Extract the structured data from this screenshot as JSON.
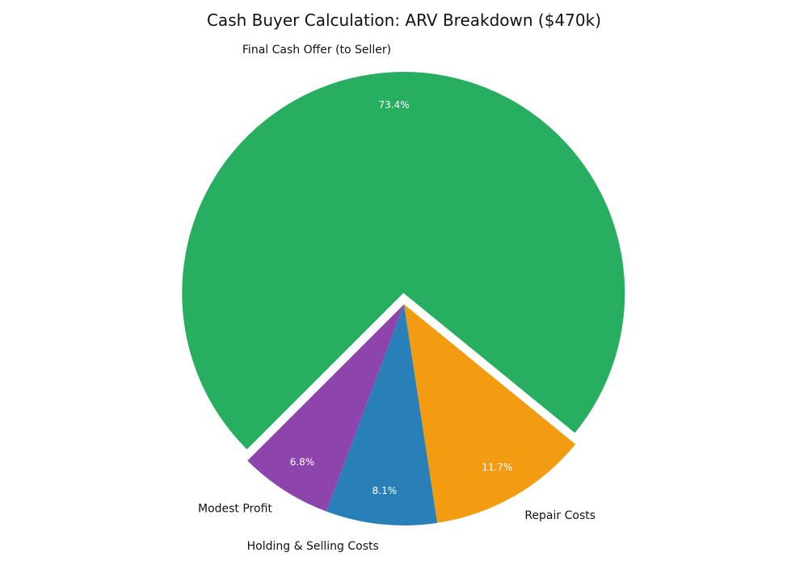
{
  "chart_data": {
    "type": "pie",
    "title": "Cash Buyer Calculation: ARV Breakdown ($470k)",
    "slices": [
      {
        "label": "Final Cash Offer (to Seller)",
        "value": 73.4,
        "pct_label": "73.4%",
        "color": "#27ae60",
        "exploded": true
      },
      {
        "label": "Repair Costs",
        "value": 11.7,
        "pct_label": "11.7%",
        "color": "#f39c12",
        "exploded": false
      },
      {
        "label": "Holding & Selling Costs",
        "value": 8.1,
        "pct_label": "8.1%",
        "color": "#2980b9",
        "exploded": false
      },
      {
        "label": "Modest Profit",
        "value": 6.8,
        "pct_label": "6.8%",
        "color": "#8e44ad",
        "exploded": false
      }
    ]
  }
}
